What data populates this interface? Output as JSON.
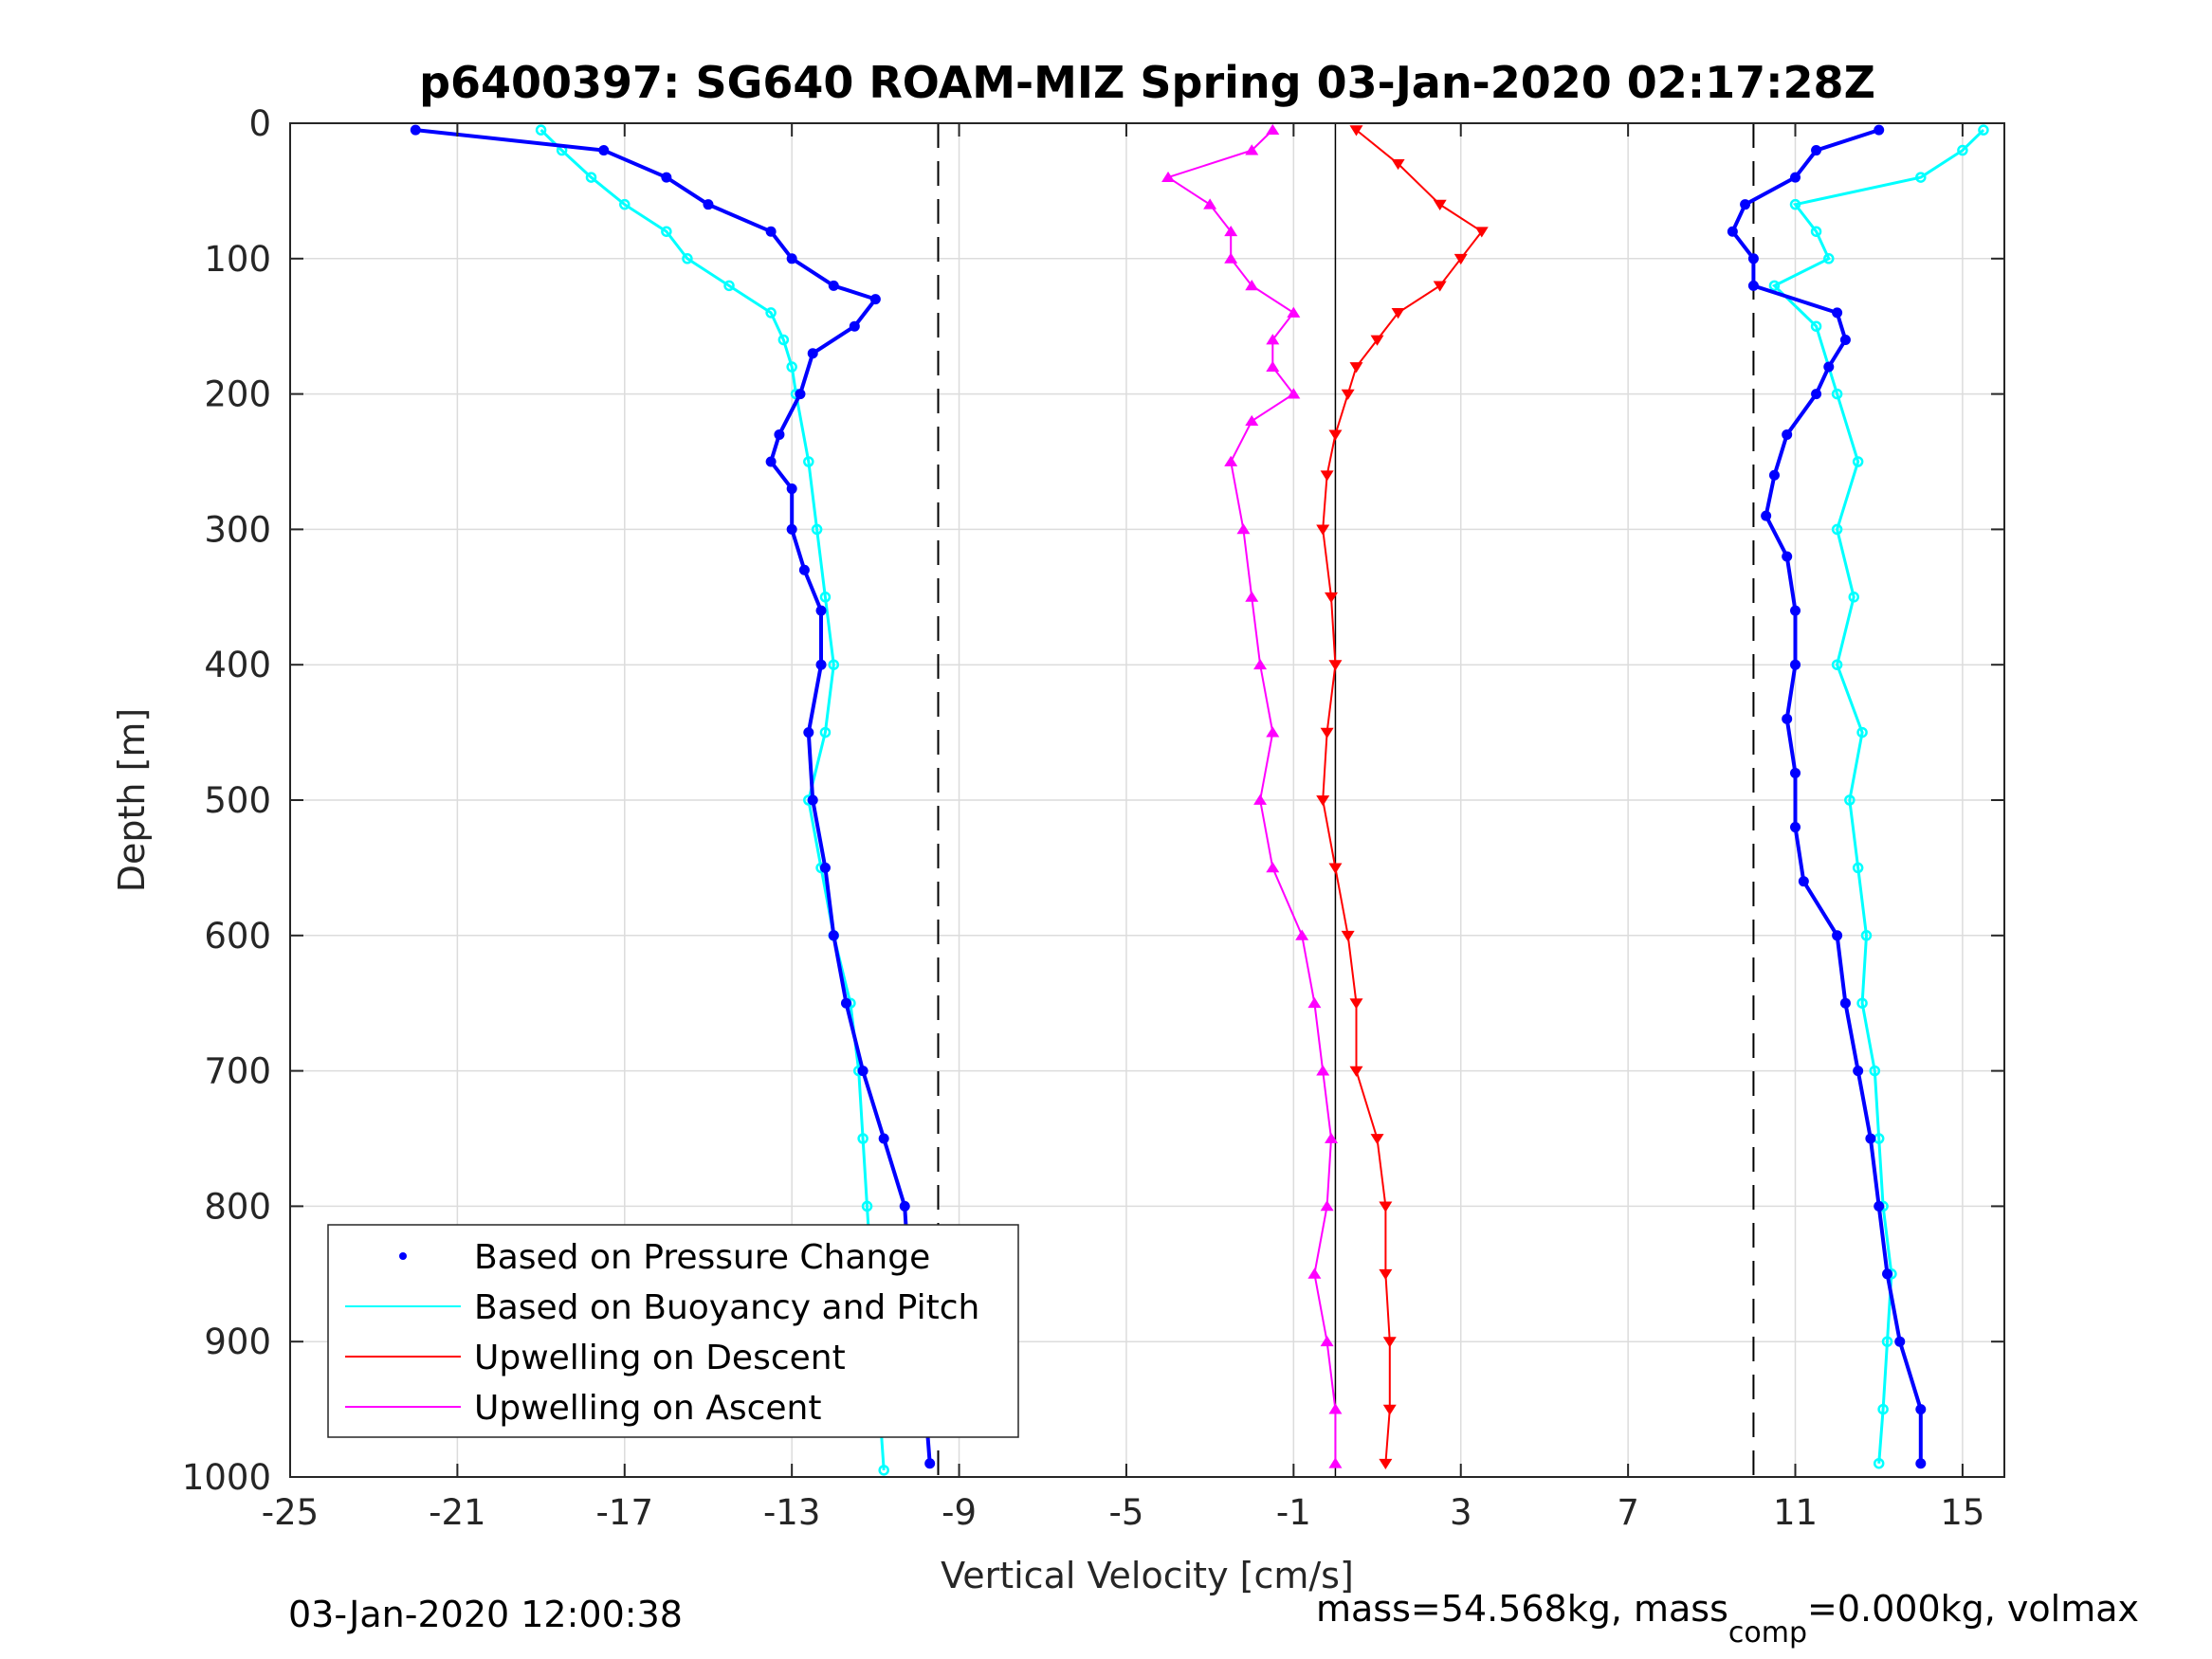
{
  "chart_data": {
    "type": "scatter",
    "title": "p6400397: SG640 ROAM-MIZ Spring 03-Jan-2020 02:17:28Z",
    "xlabel": "Vertical Velocity [cm/s]",
    "ylabel": "Depth [m]",
    "xlim": [
      -25,
      16
    ],
    "ylim": [
      0,
      1000
    ],
    "y_reversed": true,
    "grid": true,
    "x_ticks": [
      -25,
      -21,
      -17,
      -13,
      -9,
      -5,
      -1,
      3,
      7,
      11,
      15
    ],
    "y_ticks": [
      0,
      100,
      200,
      300,
      400,
      500,
      600,
      700,
      800,
      900,
      1000
    ],
    "x_tick_labels": [
      "-25",
      "-21",
      "-17",
      "-13",
      "-9",
      "-5",
      "-1",
      "3",
      "7",
      "11",
      "15"
    ],
    "y_tick_labels": [
      "0",
      "100",
      "200",
      "300",
      "400",
      "500",
      "600",
      "700",
      "800",
      "900",
      "1000"
    ],
    "reference_lines": {
      "zero_line": 0,
      "dashed_lines": [
        -9.5,
        10
      ]
    },
    "legend_position": "bottom-left",
    "series": [
      {
        "name": "Based on Pressure Change",
        "color": "#0000ff",
        "marker": "dot",
        "descent": {
          "depth": [
            5,
            20,
            40,
            60,
            80,
            100,
            120,
            130,
            150,
            170,
            200,
            230,
            250,
            270,
            300,
            330,
            360,
            400,
            450,
            500,
            550,
            600,
            650,
            700,
            750,
            800,
            850,
            900,
            950,
            990
          ],
          "velocity": [
            -22,
            -17.5,
            -16,
            -15,
            -13.5,
            -13,
            -12,
            -11,
            -11.5,
            -12.5,
            -12.8,
            -13.3,
            -13.5,
            -13,
            -13,
            -12.7,
            -12.3,
            -12.3,
            -12.6,
            -12.5,
            -12.2,
            -12,
            -11.7,
            -11.3,
            -10.8,
            -10.3,
            -10.2,
            -10,
            -9.8,
            -9.7
          ]
        },
        "ascent": {
          "depth": [
            990,
            950,
            900,
            850,
            800,
            750,
            700,
            650,
            600,
            560,
            520,
            480,
            440,
            400,
            360,
            320,
            290,
            260,
            230,
            200,
            180,
            160,
            140,
            120,
            100,
            80,
            60,
            40,
            20,
            5
          ],
          "velocity": [
            14,
            14,
            13.5,
            13.2,
            13,
            12.8,
            12.5,
            12.2,
            12,
            11.2,
            11,
            11,
            10.8,
            11,
            11,
            10.8,
            10.3,
            10.5,
            10.8,
            11.5,
            11.8,
            12.2,
            12,
            10,
            10,
            9.5,
            9.8,
            11,
            11.5,
            13
          ]
        }
      },
      {
        "name": "Based on Buoyancy and Pitch",
        "color": "#00ffff",
        "marker": "line",
        "descent": {
          "depth": [
            5,
            20,
            40,
            60,
            80,
            100,
            120,
            140,
            160,
            180,
            200,
            250,
            300,
            350,
            400,
            450,
            500,
            550,
            600,
            650,
            700,
            750,
            800,
            850,
            900,
            950,
            995
          ],
          "velocity": [
            -19,
            -18.5,
            -17.8,
            -17,
            -16,
            -15.5,
            -14.5,
            -13.5,
            -13.2,
            -13,
            -12.9,
            -12.6,
            -12.4,
            -12.2,
            -12,
            -12.2,
            -12.6,
            -12.3,
            -12,
            -11.6,
            -11.4,
            -11.3,
            -11.2,
            -11.1,
            -11,
            -10.9,
            -10.8
          ]
        },
        "ascent": {
          "depth": [
            990,
            950,
            900,
            850,
            800,
            750,
            700,
            650,
            600,
            550,
            500,
            450,
            400,
            350,
            300,
            250,
            200,
            150,
            120,
            100,
            80,
            60,
            40,
            20,
            5
          ],
          "velocity": [
            13,
            13.1,
            13.2,
            13.3,
            13.1,
            13,
            12.9,
            12.6,
            12.7,
            12.5,
            12.3,
            12.6,
            12,
            12.4,
            12,
            12.5,
            12,
            11.5,
            10.5,
            11.8,
            11.5,
            11,
            14,
            15,
            15.5
          ]
        }
      },
      {
        "name": "Upwelling on Descent",
        "color": "#ff0000",
        "marker": "triangle-down",
        "depth": [
          5,
          30,
          60,
          80,
          100,
          120,
          140,
          160,
          180,
          200,
          230,
          260,
          300,
          350,
          400,
          450,
          500,
          550,
          600,
          650,
          700,
          750,
          800,
          850,
          900,
          950,
          990
        ],
        "velocity": [
          0.5,
          1.5,
          2.5,
          3.5,
          3,
          2.5,
          1.5,
          1,
          0.5,
          0.3,
          0,
          -0.2,
          -0.3,
          -0.1,
          0,
          -0.2,
          -0.3,
          0,
          0.3,
          0.5,
          0.5,
          1,
          1.2,
          1.2,
          1.3,
          1.3,
          1.2
        ]
      },
      {
        "name": "Upwelling on Ascent",
        "color": "#ff00ff",
        "marker": "triangle-up",
        "depth": [
          990,
          950,
          900,
          850,
          800,
          750,
          700,
          650,
          600,
          550,
          500,
          450,
          400,
          350,
          300,
          250,
          220,
          200,
          180,
          160,
          140,
          120,
          100,
          80,
          60,
          40,
          20,
          5
        ],
        "velocity": [
          0,
          0,
          -0.2,
          -0.5,
          -0.2,
          -0.1,
          -0.3,
          -0.5,
          -0.8,
          -1.5,
          -1.8,
          -1.5,
          -1.8,
          -2,
          -2.2,
          -2.5,
          -2,
          -1,
          -1.5,
          -1.5,
          -1,
          -2,
          -2.5,
          -2.5,
          -3,
          -4,
          -2,
          -1.5
        ]
      }
    ]
  },
  "legend": {
    "items": [
      {
        "label": "Based on Pressure Change",
        "color": "#0000ff",
        "kind": "dot"
      },
      {
        "label": "Based on Buoyancy and Pitch",
        "color": "#00ffff",
        "kind": "line"
      },
      {
        "label": "Upwelling on Descent",
        "color": "#ff0000",
        "kind": "line"
      },
      {
        "label": "Upwelling on Ascent",
        "color": "#ff00ff",
        "kind": "line"
      }
    ]
  },
  "footer": {
    "timestamp": "03-Jan-2020 12:00:38",
    "mass_text": "mass=54.568kg, mass",
    "mass_sub": "comp",
    "mass_rest": "=0.000kg, volmax"
  }
}
